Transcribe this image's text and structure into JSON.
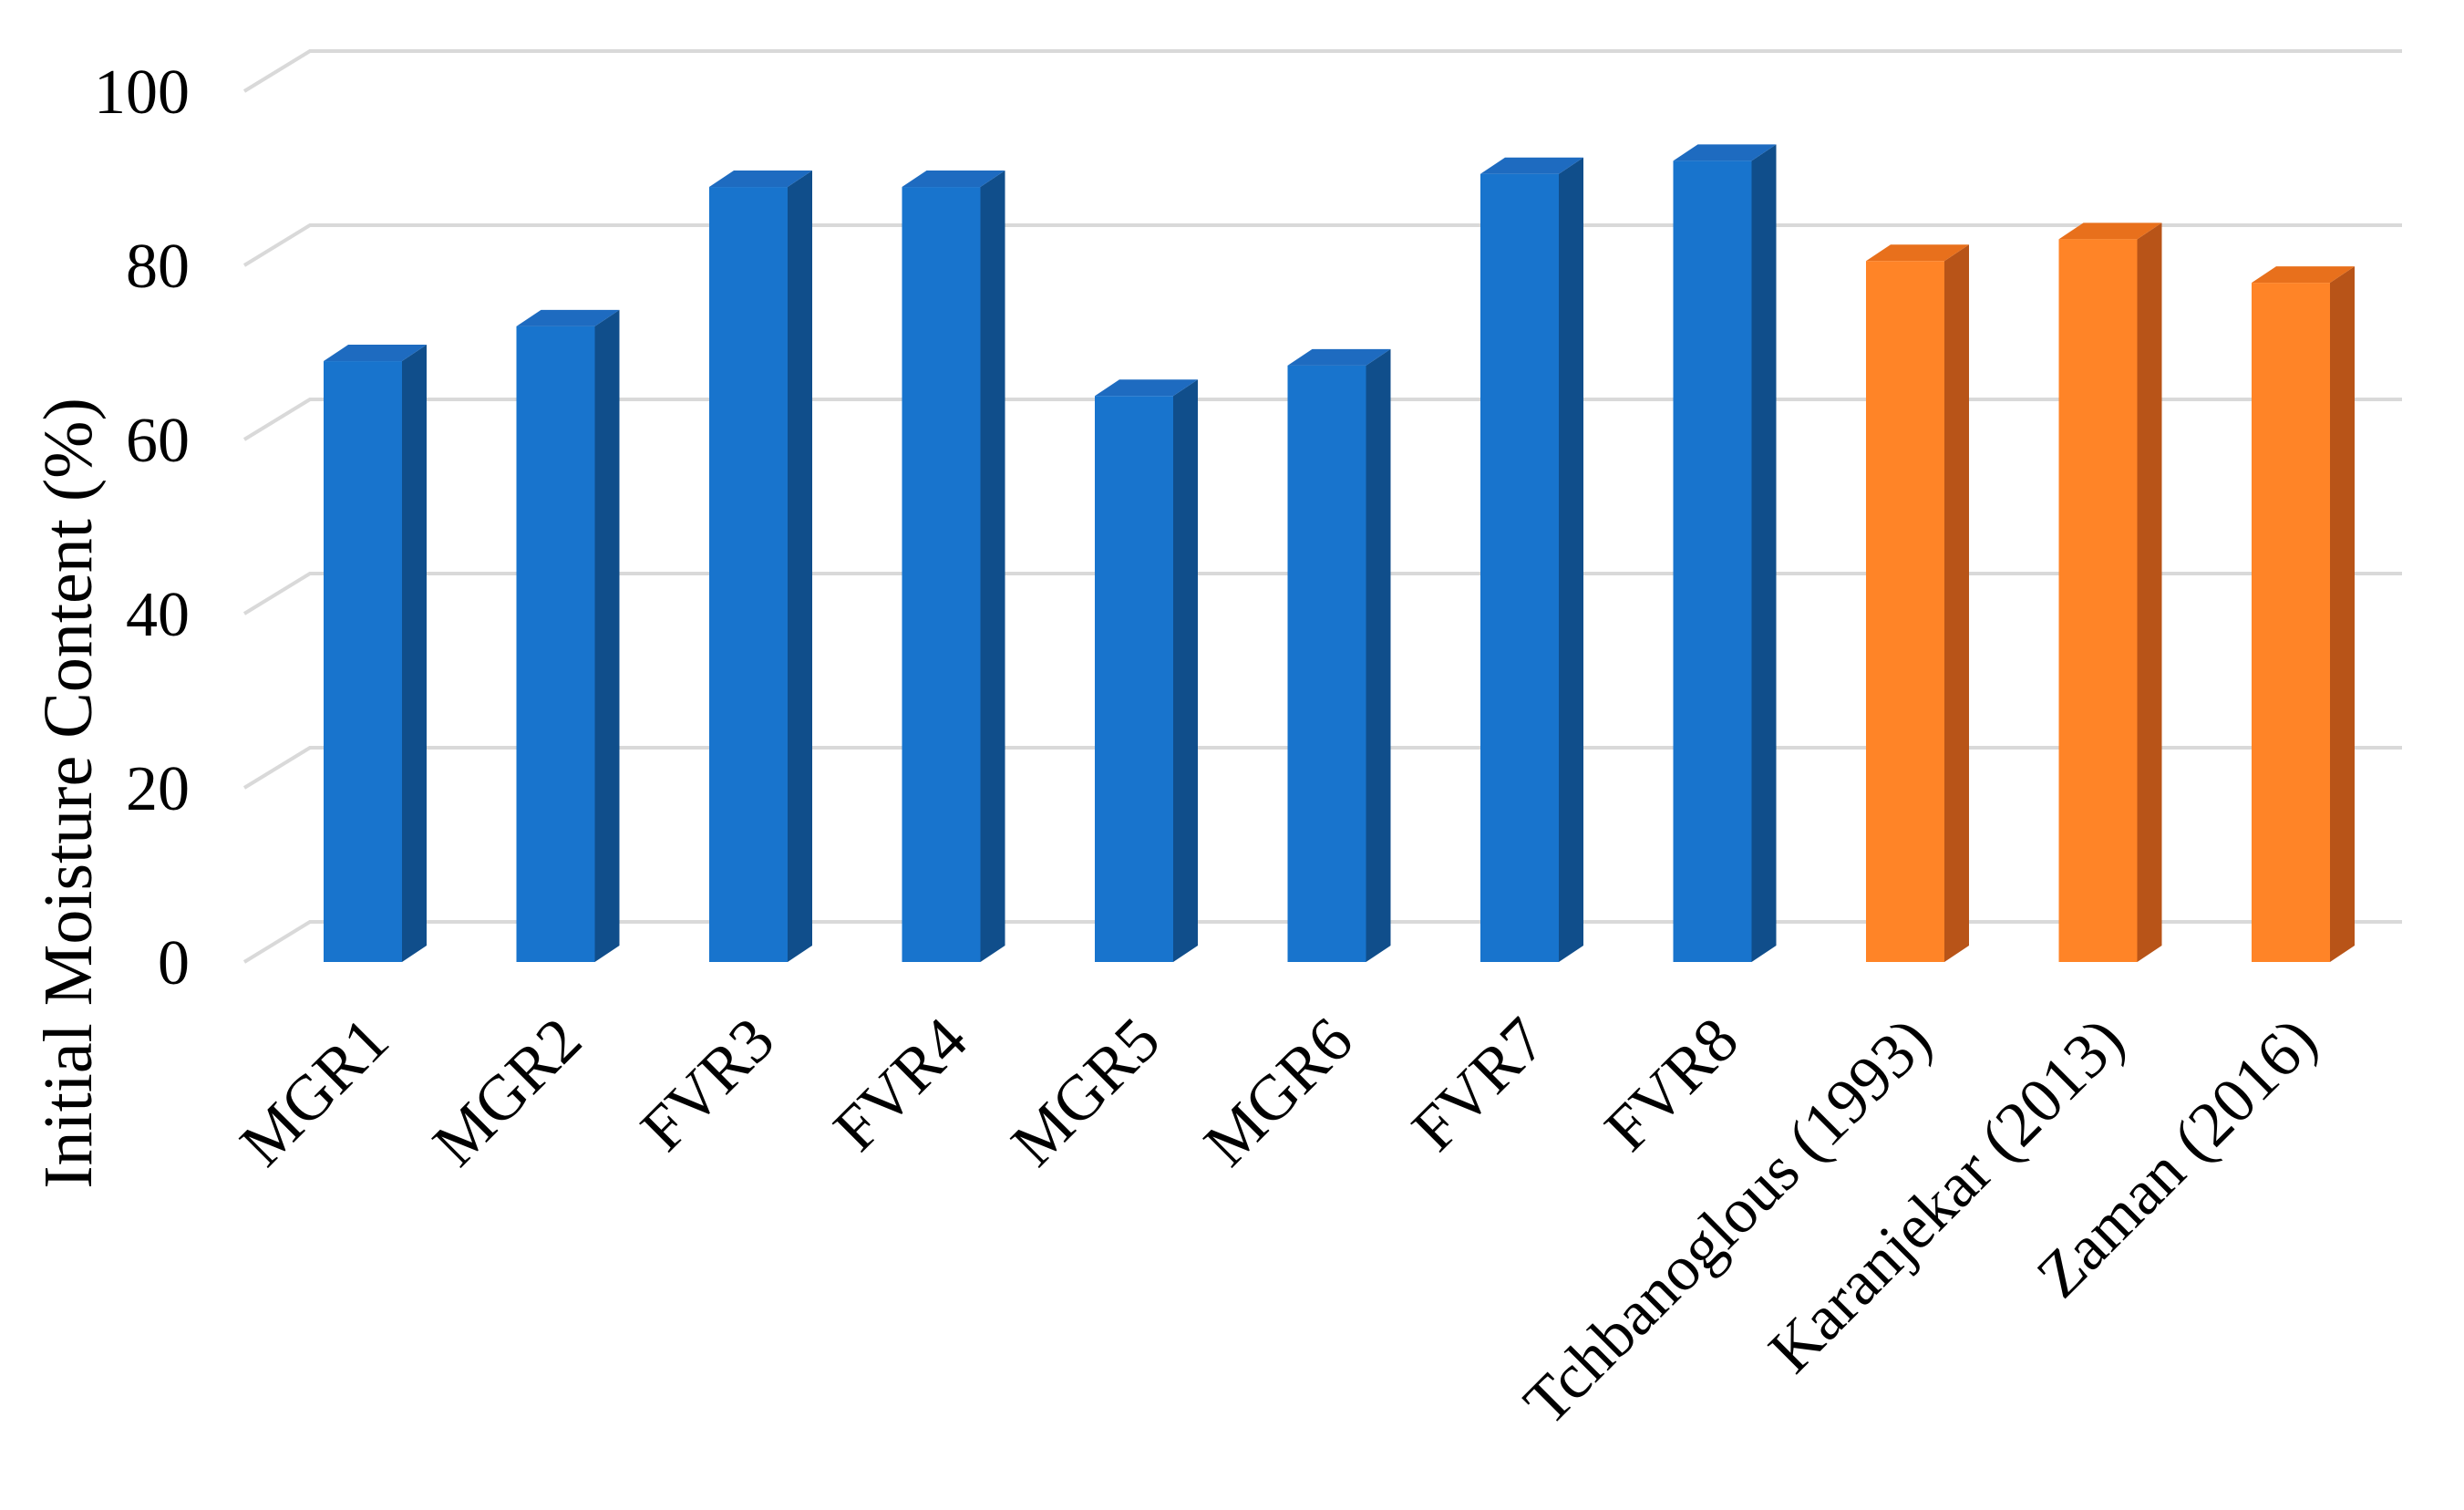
{
  "chart_data": {
    "type": "bar",
    "style": "3d-column",
    "title": "",
    "xlabel": "",
    "ylabel": "Initial Moisture Content (%)",
    "ylim": [
      0,
      100
    ],
    "yticks": [
      0,
      20,
      40,
      60,
      80,
      100
    ],
    "grid": true,
    "legend": "none",
    "categories": [
      "MGR1",
      "MGR2",
      "FVR3",
      "FVR4",
      "MGR5",
      "MGR6",
      "FVR7",
      "FVR8",
      "Tchbanoglous (1993)",
      "Karanjekar (2013)",
      "Zaman (2016)"
    ],
    "values": [
      69,
      73,
      89,
      89,
      65,
      68.5,
      90.5,
      92,
      80.5,
      83,
      78
    ],
    "bar_groups": [
      "measured",
      "measured",
      "measured",
      "measured",
      "measured",
      "measured",
      "measured",
      "measured",
      "literature",
      "literature",
      "literature"
    ],
    "colors": {
      "measured": {
        "front": "#1874CD",
        "side": "#104E8B",
        "top": "#1E6BC0"
      },
      "literature": {
        "front": "#FF8427",
        "side": "#B85418",
        "top": "#E8701C"
      },
      "grid": "#D9D9D9"
    }
  }
}
